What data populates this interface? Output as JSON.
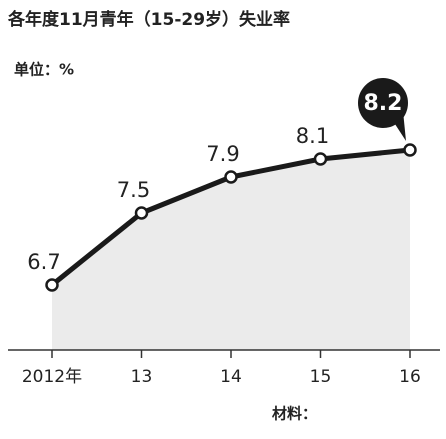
{
  "chart_data": {
    "type": "line",
    "title": "各年度11月青年（15-29岁）失业率",
    "subtitle": "单位：%",
    "categories": [
      "2012年",
      "13",
      "14",
      "15",
      "16"
    ],
    "values": [
      6.7,
      7.5,
      7.9,
      8.1,
      8.2
    ],
    "color": "#1a1a1a",
    "area_color": "#ebebeb",
    "source": "材料："
  }
}
